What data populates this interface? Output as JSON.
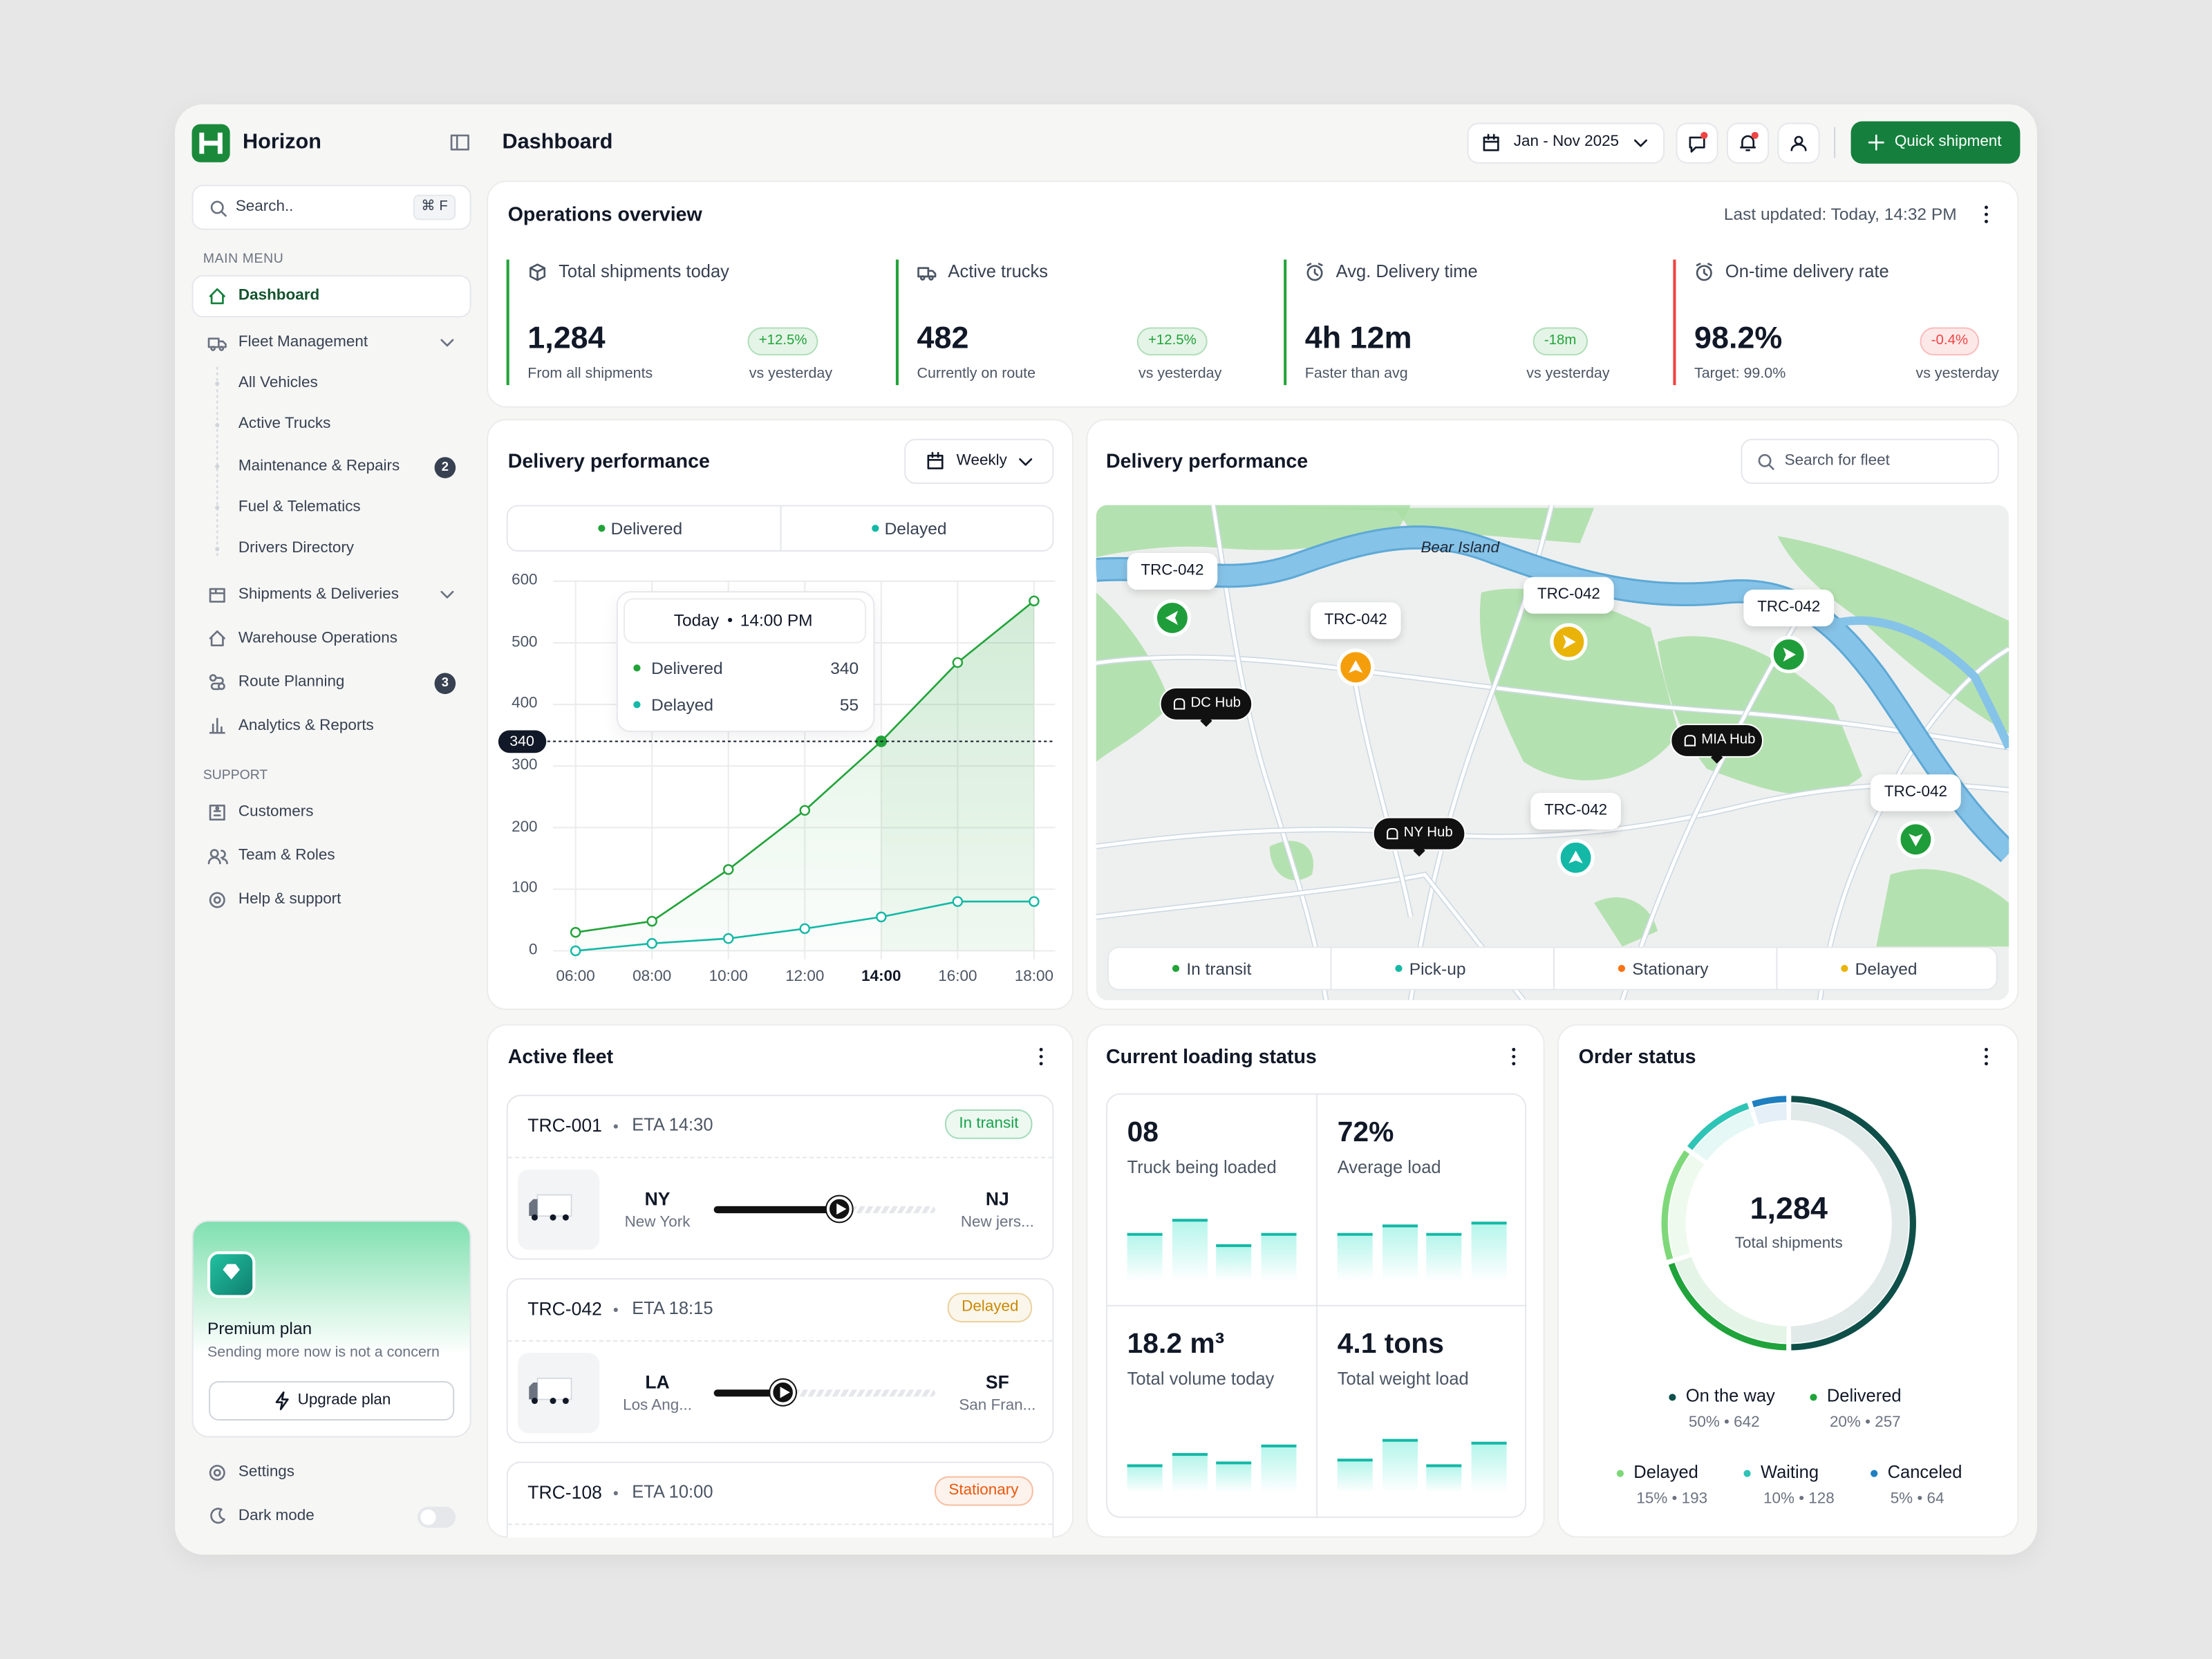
{
  "sidebar": {
    "brand": "Horizon",
    "search": {
      "placeholder": "Search..",
      "shortcut": "⌘ F"
    },
    "main_menu": {
      "title": "MAIN MENU",
      "items": [
        {
          "label": "Dashboard"
        },
        {
          "label": "Fleet Management",
          "expanded": true,
          "children": [
            {
              "label": "All Vehicles"
            },
            {
              "label": "Active Trucks"
            },
            {
              "label": "Maintenance & Repairs",
              "badge": 2
            },
            {
              "label": "Fuel & Telematics"
            },
            {
              "label": "Drivers Directory"
            }
          ]
        },
        {
          "label": "Shipments & Deliveries",
          "expanded": false
        },
        {
          "label": "Warehouse Operations"
        },
        {
          "label": "Route Planning",
          "badge": 3
        },
        {
          "label": "Analytics & Reports"
        }
      ]
    },
    "support": {
      "title": "SUPPORT",
      "items": [
        {
          "label": "Customers"
        },
        {
          "label": "Team & Roles"
        },
        {
          "label": "Help & support"
        }
      ]
    },
    "premium": {
      "title": "Premium plan",
      "text": "Sending more now is not a concern",
      "button": "Upgrade plan"
    },
    "settings": "Settings",
    "dark_mode": "Dark mode"
  },
  "header": {
    "title": "Dashboard",
    "date_range": "Jan - Nov 2025",
    "quick_action": "Quick shipment"
  },
  "overview": {
    "title": "Operations overview",
    "last_updated": "Last updated: Today, 14:32 PM",
    "kpis": [
      {
        "label": "Total shipments today",
        "value": "1,284",
        "note": "From all shipments",
        "delta": "+12.5%",
        "delta_note": "vs yesterday",
        "color": "#22a33a"
      },
      {
        "label": "Active trucks",
        "value": "482",
        "note": "Currently on route",
        "delta": "+12.5%",
        "delta_note": "vs yesterday",
        "color": "#22a33a"
      },
      {
        "label": "Avg. Delivery time",
        "value": "4h 12m",
        "note": "Faster than avg",
        "delta": "-18m",
        "delta_note": "vs yesterday",
        "color": "#22a33a"
      },
      {
        "label": "On-time delivery rate",
        "value": "98.2%",
        "note": "Target: 99.0%",
        "delta": "-0.4%",
        "delta_note": "vs yesterday",
        "color": "#ef4444"
      }
    ]
  },
  "delivery_performance": {
    "title": "Delivery performance",
    "period": "Weekly",
    "tooltip": {
      "day": "Today",
      "time": "14:00 PM"
    },
    "chart": {
      "type": "line",
      "categories": [
        "06:00",
        "08:00",
        "10:00",
        "12:00",
        "14:00",
        "16:00",
        "18:00"
      ],
      "series": [
        {
          "name": "Delivered",
          "color": "#22a33a",
          "values": [
            30,
            48,
            132,
            228,
            340,
            468,
            568
          ]
        },
        {
          "name": "Delayed",
          "color": "#14b8a6",
          "values": [
            0,
            12,
            20,
            36,
            55,
            80,
            80
          ]
        }
      ],
      "ylim": [
        0,
        600
      ],
      "yticks": [
        0,
        100,
        200,
        300,
        400,
        500,
        600
      ],
      "grid": true
    }
  },
  "fleet_map": {
    "title": "Delivery performance",
    "search": "Search for fleet",
    "place": "Bear Island",
    "trucks": [
      {
        "label": "TRC-042",
        "color": "#1f9d3a"
      },
      {
        "label": "TRC-042",
        "color": "#f59e0b"
      },
      {
        "label": "TRC-042",
        "color": "#eab308"
      },
      {
        "label": "TRC-042",
        "color": "#1f9d3a"
      },
      {
        "label": "TRC-042",
        "color": "#14b8a6"
      },
      {
        "label": "TRC-042",
        "color": "#1f9d3a"
      }
    ],
    "hubs": [
      "DC Hub",
      "MIA Hub",
      "NY Hub"
    ],
    "legend": [
      {
        "label": "In transit",
        "color": "#22a33a"
      },
      {
        "label": "Pick-up",
        "color": "#14b8a6"
      },
      {
        "label": "Stationary",
        "color": "#f97316"
      },
      {
        "label": "Delayed",
        "color": "#eab308"
      }
    ]
  },
  "active_fleet": {
    "title": "Active fleet",
    "vehicles": [
      {
        "id": "TRC-001",
        "eta": "ETA 14:30",
        "status": "In transit",
        "color": "#16a34a",
        "from": {
          "code": "NY",
          "name": "New York"
        },
        "to": {
          "code": "NJ",
          "name": "New jers..."
        },
        "progress": 57
      },
      {
        "id": "TRC-042",
        "eta": "ETA 18:15",
        "status": "Delayed",
        "color": "#ca8a04",
        "from": {
          "code": "LA",
          "name": "Los Ang..."
        },
        "to": {
          "code": "SF",
          "name": "San Fran..."
        },
        "progress": 31
      },
      {
        "id": "TRC-108",
        "eta": "ETA 10:00",
        "status": "Stationary",
        "color": "#ea580c"
      }
    ]
  },
  "loading_status": {
    "title": "Current loading status",
    "metrics": [
      {
        "value": "08",
        "label": "Truck being loaded"
      },
      {
        "value": "72%",
        "label": "Average load"
      },
      {
        "value": "18.2 m³",
        "label": "Total volume today"
      },
      {
        "value": "4.1 tons",
        "label": "Total weight load"
      }
    ]
  },
  "order_status": {
    "title": "Order status",
    "total": "1,284",
    "total_label": "Total shipments",
    "chart": {
      "type": "pie",
      "categories": [
        "On the way",
        "Delivered",
        "Delayed",
        "Waiting",
        "Canceled"
      ],
      "values": [
        50,
        20,
        15,
        10,
        5
      ],
      "value_labels": [
        "50% • 642",
        "20% • 257",
        "15% • 193",
        "10% • 128",
        "5% • 64"
      ],
      "colors": [
        "#0f4f4a",
        "#1fa33a",
        "#7ed87a",
        "#2ec4b6",
        "#1e7fc1"
      ]
    }
  }
}
